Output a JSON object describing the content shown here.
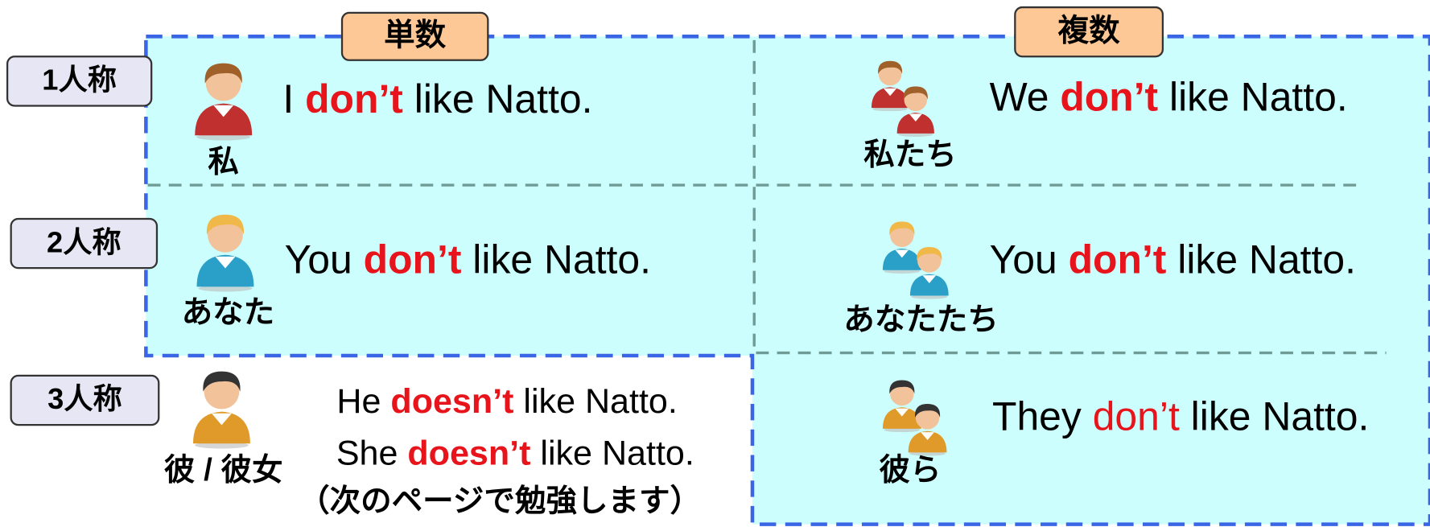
{
  "header": {
    "singular": "単数",
    "plural": "複数"
  },
  "rows": [
    {
      "label": "1人称",
      "singular": {
        "person": "私",
        "sentences": [
          {
            "parts": [
              "I ",
              "don’t",
              " like Natto."
            ]
          }
        ]
      },
      "plural": {
        "person": "私たち",
        "sentences": [
          {
            "parts": [
              "We ",
              "don’t",
              " like Natto."
            ]
          }
        ]
      }
    },
    {
      "label": "2人称",
      "singular": {
        "person": "あなた",
        "sentences": [
          {
            "parts": [
              "You ",
              "don’t",
              " like Natto."
            ]
          }
        ]
      },
      "plural": {
        "person": "あなたたち",
        "sentences": [
          {
            "parts": [
              "You ",
              "don’t",
              " like Natto."
            ]
          }
        ]
      }
    },
    {
      "label": "3人称",
      "singular": {
        "person": "彼 / 彼女",
        "sentences": [
          {
            "parts": [
              "He ",
              "doesn’t",
              " like Natto."
            ]
          },
          {
            "parts": [
              "She ",
              "doesn’t",
              " like Natto."
            ]
          }
        ],
        "note": "（次のページで勉強します）"
      },
      "plural": {
        "person": "彼ら",
        "sentences": [
          {
            "parts": [
              "They ",
              "don’t",
              " like Natto."
            ]
          }
        ]
      }
    }
  ]
}
